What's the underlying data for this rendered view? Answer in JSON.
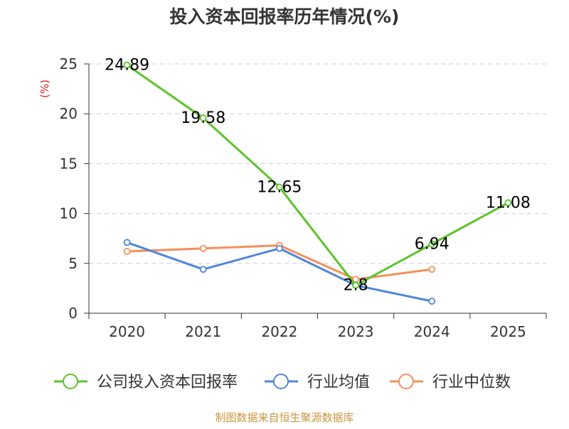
{
  "chart_data": {
    "type": "line",
    "title": "投入资本回报率历年情况(%)",
    "ylabel": "(%)",
    "xlabel": "",
    "categories": [
      "2020",
      "2021",
      "2022",
      "2023",
      "2024",
      "2025"
    ],
    "ylim": [
      0,
      25
    ],
    "yticks": [
      "0",
      "5",
      "10",
      "15",
      "20",
      "25"
    ],
    "grid": true,
    "legend_position": "bottom",
    "series": [
      {
        "name": "公司投入资本回报率",
        "color": "#5bc42b",
        "values": [
          24.89,
          19.58,
          12.65,
          2.8,
          6.94,
          11.08
        ],
        "labels": [
          "24.89",
          "19.58",
          "12.65",
          "2.8",
          "6.94",
          "11.08"
        ]
      },
      {
        "name": "行业均值",
        "color": "#4f86d9",
        "values": [
          7.1,
          4.4,
          6.5,
          2.8,
          1.2,
          null
        ]
      },
      {
        "name": "行业中位数",
        "color": "#f4905a",
        "values": [
          6.2,
          6.5,
          6.8,
          3.4,
          4.4,
          null
        ]
      }
    ]
  },
  "footer": {
    "source": "制图数据来自恒生聚源数据库"
  }
}
